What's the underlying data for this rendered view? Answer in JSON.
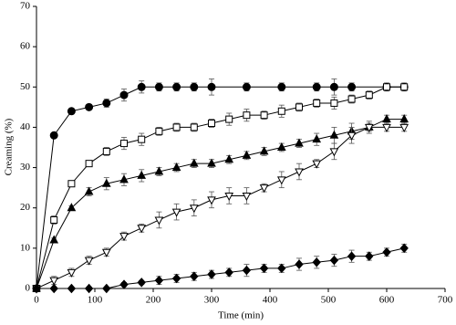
{
  "chart_data": {
    "type": "line",
    "x_label": "Time (min)",
    "y_label": "Creaming (%)",
    "xlim": [
      0,
      700
    ],
    "xticks": [
      0,
      100,
      200,
      300,
      400,
      500,
      600,
      700
    ],
    "ylim": [
      0,
      70
    ],
    "yticks": [
      0,
      10,
      20,
      30,
      40,
      50,
      60,
      70
    ],
    "grid": false,
    "series": [
      {
        "color": "#000000",
        "marker": "circle",
        "filled": true,
        "x": [
          0,
          30,
          60,
          90,
          120,
          150,
          180,
          210,
          240,
          270,
          300,
          360,
          420,
          480,
          510,
          540,
          600,
          630
        ],
        "values": [
          0,
          38,
          44,
          45,
          46,
          48,
          50,
          50,
          50,
          50,
          50,
          50,
          50,
          50,
          50,
          50,
          50,
          50
        ],
        "errors": [
          0,
          0.5,
          0.5,
          0.5,
          1,
          1.5,
          1.5,
          1,
          1,
          1,
          2,
          1,
          1,
          1,
          2,
          1,
          1,
          1
        ]
      },
      {
        "color": "#000000",
        "marker": "square",
        "filled": false,
        "x": [
          0,
          30,
          60,
          90,
          120,
          150,
          180,
          210,
          240,
          270,
          300,
          330,
          360,
          390,
          420,
          450,
          480,
          510,
          540,
          570,
          600,
          630
        ],
        "values": [
          0,
          17,
          26,
          31,
          34,
          36,
          37,
          39,
          40,
          40,
          41,
          42,
          43,
          43,
          44,
          45,
          46,
          46,
          47,
          48,
          50,
          50
        ],
        "errors": [
          0,
          1,
          0.5,
          0.5,
          1,
          1.5,
          1.5,
          1,
          1,
          1,
          1,
          1.5,
          1.5,
          1,
          1.5,
          1,
          1,
          1.5,
          1,
          1,
          0.5,
          0.5
        ]
      },
      {
        "color": "#000000",
        "marker": "triangle-up",
        "filled": true,
        "x": [
          0,
          30,
          60,
          90,
          120,
          150,
          180,
          210,
          240,
          270,
          300,
          330,
          360,
          390,
          420,
          450,
          480,
          510,
          540,
          570,
          600,
          630
        ],
        "values": [
          0,
          12,
          20,
          24,
          26,
          27,
          28,
          29,
          30,
          31,
          31,
          32,
          33,
          34,
          35,
          36,
          37,
          38,
          39,
          40,
          42,
          42
        ],
        "errors": [
          0,
          0.5,
          0.5,
          1,
          1.5,
          1.5,
          1.5,
          1,
          1,
          1,
          1,
          1,
          1,
          1,
          1,
          1,
          1.5,
          2,
          2,
          1.5,
          1,
          1
        ]
      },
      {
        "color": "#000000",
        "marker": "triangle-down",
        "filled": false,
        "x": [
          0,
          30,
          60,
          90,
          120,
          150,
          180,
          210,
          240,
          270,
          300,
          330,
          360,
          390,
          420,
          450,
          480,
          510,
          540,
          570,
          600,
          630
        ],
        "values": [
          0,
          2,
          4,
          7,
          9,
          13,
          15,
          17,
          19,
          20,
          22,
          23,
          23,
          25,
          27,
          29,
          31,
          34,
          38,
          40,
          40,
          40
        ],
        "errors": [
          0,
          1,
          1,
          1,
          1,
          1,
          1,
          2,
          2,
          2,
          2,
          2,
          2,
          1,
          2,
          2,
          1,
          2,
          2,
          1,
          1,
          1
        ]
      },
      {
        "color": "#000000",
        "marker": "diamond",
        "filled": true,
        "x": [
          0,
          30,
          60,
          90,
          120,
          150,
          180,
          210,
          240,
          270,
          300,
          330,
          360,
          390,
          420,
          450,
          480,
          510,
          540,
          570,
          600,
          630
        ],
        "values": [
          0,
          0,
          0,
          0,
          0,
          1,
          1.5,
          2,
          2.5,
          3,
          3.5,
          4,
          4.5,
          5,
          5,
          6,
          6.5,
          7,
          8,
          8,
          9,
          10
        ],
        "errors": [
          0,
          0,
          0,
          0,
          0,
          0.5,
          0.5,
          1,
          1,
          1,
          1,
          1,
          1.5,
          1,
          1,
          1.5,
          1.5,
          1.5,
          1.5,
          1,
          1,
          1
        ]
      }
    ]
  }
}
